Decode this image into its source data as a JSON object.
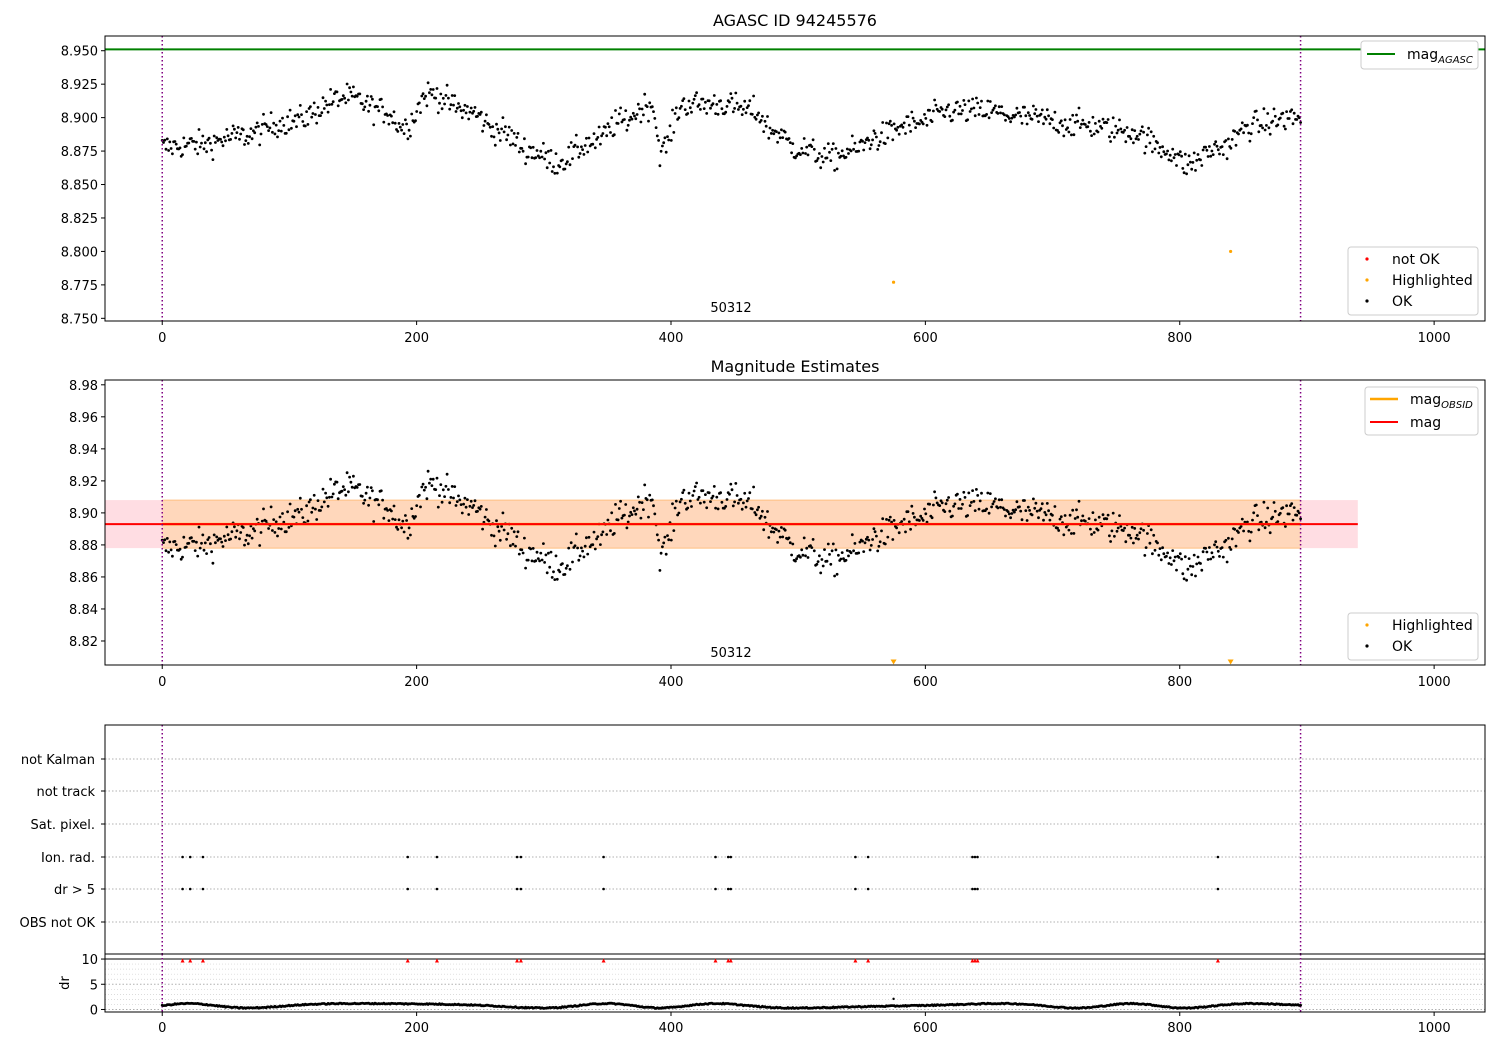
{
  "chart_data": [
    {
      "panel": "magnitude",
      "type": "scatter",
      "title": "AGASC ID 94245576",
      "xlim": [
        -45,
        1040
      ],
      "ylim": [
        8.748,
        8.961
      ],
      "xticks": [
        0,
        200,
        400,
        600,
        800,
        1000
      ],
      "yticks": [
        "8.750",
        "8.775",
        "8.800",
        "8.825",
        "8.850",
        "8.875",
        "8.900",
        "8.925",
        "8.950"
      ],
      "ytick_values": [
        8.75,
        8.775,
        8.8,
        8.825,
        8.85,
        8.875,
        8.9,
        8.925,
        8.95
      ],
      "obsid_boundaries": [
        0,
        895
      ],
      "obsid_label": "50312",
      "obsid_label_x": 448,
      "reference_line": {
        "name": "mag",
        "sub": "AGASC",
        "value": 8.951,
        "color": "#008000"
      },
      "curve_knots": [
        [
          0,
          8.878
        ],
        [
          30,
          8.88
        ],
        [
          60,
          8.886
        ],
        [
          100,
          8.897
        ],
        [
          145,
          8.915
        ],
        [
          175,
          8.905
        ],
        [
          190,
          8.893
        ],
        [
          210,
          8.918
        ],
        [
          240,
          8.905
        ],
        [
          265,
          8.89
        ],
        [
          290,
          8.875
        ],
        [
          310,
          8.867
        ],
        [
          340,
          8.882
        ],
        [
          360,
          8.897
        ],
        [
          385,
          8.91
        ],
        [
          392,
          8.875
        ],
        [
          410,
          8.91
        ],
        [
          440,
          8.91
        ],
        [
          465,
          8.905
        ],
        [
          480,
          8.89
        ],
        [
          500,
          8.877
        ],
        [
          525,
          8.87
        ],
        [
          545,
          8.876
        ],
        [
          560,
          8.885
        ],
        [
          590,
          8.895
        ],
        [
          620,
          8.905
        ],
        [
          645,
          8.905
        ],
        [
          680,
          8.9
        ],
        [
          720,
          8.895
        ],
        [
          760,
          8.89
        ],
        [
          790,
          8.876
        ],
        [
          805,
          8.865
        ],
        [
          830,
          8.877
        ],
        [
          860,
          8.895
        ],
        [
          890,
          8.9
        ]
      ],
      "noise": 0.009,
      "ok_points": {
        "name": "OK",
        "color": "#000000",
        "x_range": [
          0,
          895
        ],
        "count": 900
      },
      "highlighted_points": {
        "name": "Highlighted",
        "color": "#ffa500",
        "points": [
          [
            575,
            8.777
          ],
          [
            840,
            8.8
          ]
        ]
      },
      "not_ok_points": {
        "name": "not OK",
        "color": "#ff0000",
        "points": []
      },
      "legend_upper": {
        "position": "upper right"
      },
      "legend_lower": {
        "position": "lower right",
        "items": [
          "not OK",
          "Highlighted",
          "OK"
        ]
      }
    },
    {
      "panel": "estimates",
      "type": "scatter",
      "title": "Magnitude Estimates",
      "xlim": [
        -45,
        1040
      ],
      "ylim": [
        8.805,
        8.983
      ],
      "xticks": [
        0,
        200,
        400,
        600,
        800,
        1000
      ],
      "yticks": [
        "8.82",
        "8.84",
        "8.86",
        "8.88",
        "8.90",
        "8.92",
        "8.94",
        "8.96",
        "8.98"
      ],
      "ytick_values": [
        8.82,
        8.84,
        8.86,
        8.88,
        8.9,
        8.92,
        8.94,
        8.96,
        8.98
      ],
      "obsid_boundaries": [
        0,
        895
      ],
      "obsid_label": "50312",
      "obsid_label_x": 448,
      "mag": {
        "name": "mag",
        "value": 8.893,
        "band": [
          8.878,
          8.908
        ],
        "x_range": [
          -45,
          940
        ],
        "color": "#ff0000",
        "band_color": "#ffdde3"
      },
      "mag_obsid": {
        "name": "mag",
        "sub": "OBSID",
        "value": 8.893,
        "band": [
          8.878,
          8.908
        ],
        "x_range": [
          0,
          895
        ],
        "color": "#ffa500",
        "band_color": "#ffd7bb"
      },
      "highlighted_markers": {
        "name": "Highlighted",
        "color": "#ffa500",
        "x": [
          575,
          840
        ]
      },
      "legend_upper": {
        "position": "upper right"
      },
      "legend_lower": {
        "position": "lower right",
        "items": [
          "Highlighted",
          "OK"
        ]
      }
    },
    {
      "panel": "flags",
      "type": "scatter",
      "xlim": [
        -45,
        1040
      ],
      "categories": [
        "not Kalman",
        "not track",
        "Sat. pixel.",
        "Ion. rad.",
        "dr > 5",
        "OBS not OK"
      ],
      "flag_x": [
        16,
        22,
        32,
        193,
        216,
        279,
        282,
        347,
        435,
        445,
        447,
        545,
        555,
        637,
        639,
        641,
        830
      ],
      "flagged_categories": [
        "Ion. rad.",
        "dr > 5"
      ],
      "obsid_boundaries": [
        0,
        895
      ]
    },
    {
      "panel": "dr",
      "type": "scatter",
      "xlim": [
        -45,
        1040
      ],
      "ylim": [
        -0.5,
        11
      ],
      "ylabel": "dr",
      "yticks": [
        "0",
        "5",
        "10"
      ],
      "ytick_values": [
        0,
        5,
        10
      ],
      "threshold": 10,
      "dr_typical": [
        0.2,
        1.3
      ],
      "flag_marker_value": 9.7,
      "obsid_boundaries": [
        0,
        895
      ]
    }
  ]
}
